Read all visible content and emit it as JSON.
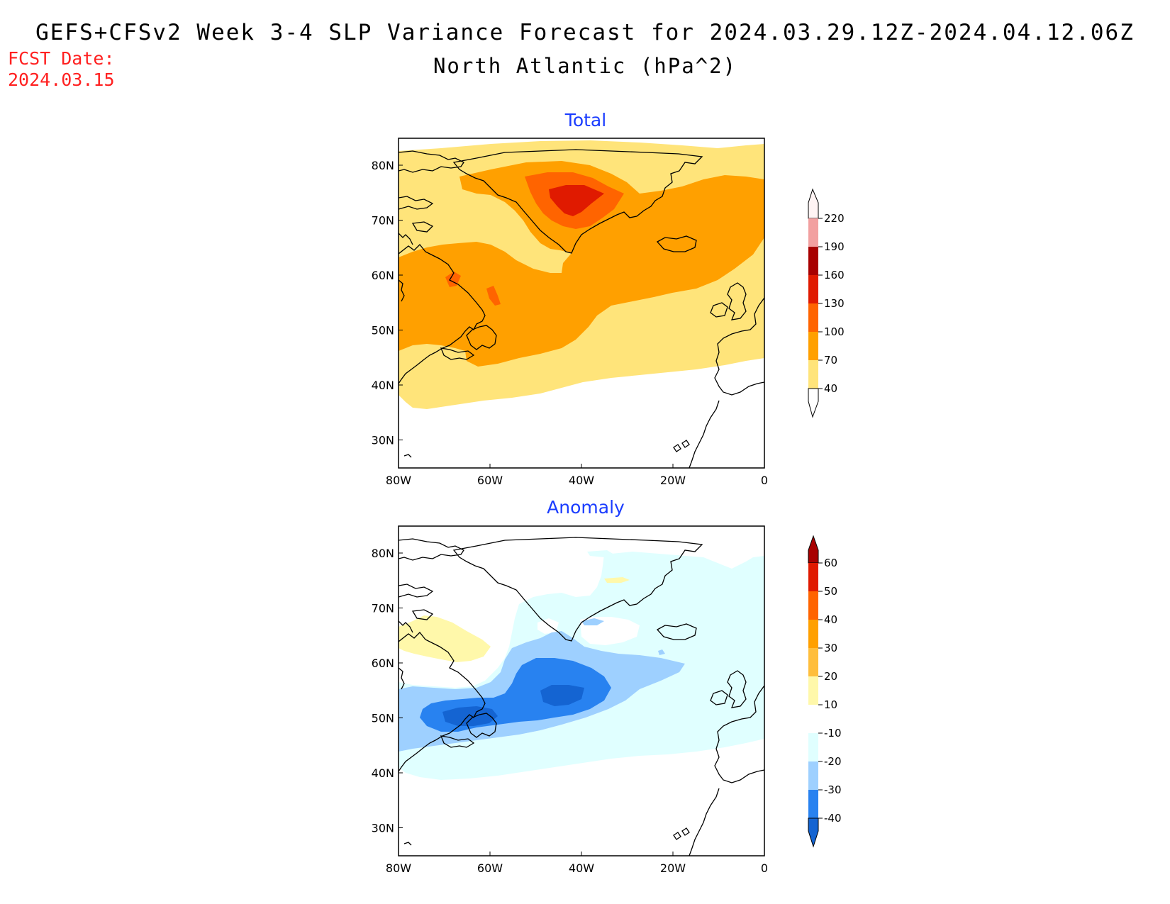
{
  "header": {
    "title": "GEFS+CFSv2 Week 3-4 SLP Variance Forecast for 2024.03.29.12Z-2024.04.12.06Z",
    "subtitle": "North Atlantic (hPa^2)",
    "fcst_label": "FCST Date:",
    "fcst_date": "2024.03.15"
  },
  "panels": [
    {
      "title": "Total",
      "lat_ticks": [
        "80N",
        "70N",
        "60N",
        "50N",
        "40N",
        "30N"
      ],
      "lon_ticks": [
        "80W",
        "60W",
        "40W",
        "20W",
        "0"
      ],
      "colorbar": {
        "labels": [
          "220",
          "190",
          "160",
          "130",
          "100",
          "70",
          "40"
        ],
        "colors": [
          "#ffe8e8",
          "#f2a0a0",
          "#a80000",
          "#e01a00",
          "#ff6400",
          "#ffa000",
          "#ffe47a"
        ]
      }
    },
    {
      "title": "Anomaly",
      "lat_ticks": [
        "80N",
        "70N",
        "60N",
        "50N",
        "40N",
        "30N"
      ],
      "lon_ticks": [
        "80W",
        "60W",
        "40W",
        "20W",
        "0"
      ],
      "colorbar": {
        "labels": [
          "60",
          "50",
          "40",
          "30",
          "20",
          "10",
          "-10",
          "-20",
          "-30",
          "-40"
        ],
        "colors": [
          "#a80000",
          "#e01a00",
          "#ff6400",
          "#ffa000",
          "#ffbe3c",
          "#fff8aa",
          "#ffffff",
          "#e0ffff",
          "#9ed0ff",
          "#2882f0",
          "#1464d2"
        ]
      }
    }
  ]
}
